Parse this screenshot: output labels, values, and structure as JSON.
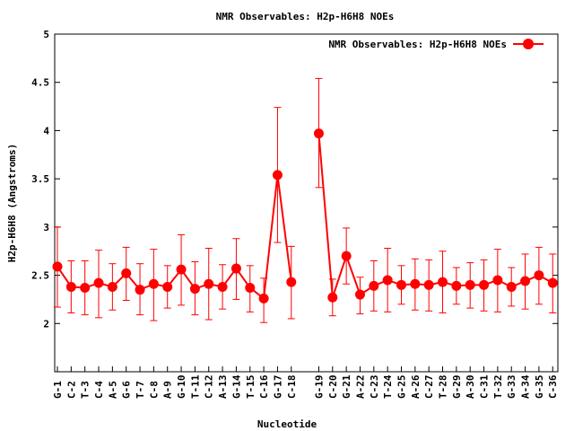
{
  "chart_data": {
    "type": "line",
    "title": "NMR Observables: H2p-H6H8 NOEs",
    "xlabel": "Nucleotide",
    "ylabel": "H2p-H6H8 (Angstroms)",
    "legend": {
      "label": "NMR Observables: H2p-H6H8 NOEs",
      "placement": "top-right"
    },
    "ylim": [
      1.5,
      5
    ],
    "yticks": [
      "2",
      "2.5",
      "3",
      "3.5",
      "4",
      "4.5",
      "5"
    ],
    "color": "#ff0000",
    "series": [
      {
        "name": "H2p-H6H8 NOEs",
        "segments": [
          [
            {
              "x": "G-1",
              "y": 2.59,
              "lo": 2.17,
              "hi": 3.0
            },
            {
              "x": "C-2",
              "y": 2.38,
              "lo": 2.11,
              "hi": 2.65
            },
            {
              "x": "T-3",
              "y": 2.37,
              "lo": 2.09,
              "hi": 2.65
            },
            {
              "x": "C-4",
              "y": 2.42,
              "lo": 2.06,
              "hi": 2.76
            },
            {
              "x": "A-5",
              "y": 2.38,
              "lo": 2.14,
              "hi": 2.62
            },
            {
              "x": "G-6",
              "y": 2.52,
              "lo": 2.24,
              "hi": 2.79
            },
            {
              "x": "T-7",
              "y": 2.35,
              "lo": 2.09,
              "hi": 2.62
            },
            {
              "x": "C-8",
              "y": 2.41,
              "lo": 2.03,
              "hi": 2.77
            },
            {
              "x": "A-9",
              "y": 2.38,
              "lo": 2.16,
              "hi": 2.6
            },
            {
              "x": "G-10",
              "y": 2.56,
              "lo": 2.19,
              "hi": 2.92
            },
            {
              "x": "T-11",
              "y": 2.36,
              "lo": 2.09,
              "hi": 2.64
            },
            {
              "x": "C-12",
              "y": 2.41,
              "lo": 2.04,
              "hi": 2.78
            },
            {
              "x": "A-13",
              "y": 2.38,
              "lo": 2.15,
              "hi": 2.61
            },
            {
              "x": "G-14",
              "y": 2.57,
              "lo": 2.25,
              "hi": 2.88
            },
            {
              "x": "T-15",
              "y": 2.37,
              "lo": 2.12,
              "hi": 2.6
            },
            {
              "x": "C-16",
              "y": 2.26,
              "lo": 2.01,
              "hi": 2.47
            },
            {
              "x": "G-17",
              "y": 3.54,
              "lo": 2.84,
              "hi": 4.24
            },
            {
              "x": "C-18",
              "y": 2.43,
              "lo": 2.05,
              "hi": 2.8
            }
          ],
          [
            {
              "x": "G-19",
              "y": 3.97,
              "lo": 3.41,
              "hi": 4.54
            },
            {
              "x": "C-20",
              "y": 2.27,
              "lo": 2.08,
              "hi": 2.46
            },
            {
              "x": "G-21",
              "y": 2.7,
              "lo": 2.41,
              "hi": 2.99
            },
            {
              "x": "A-22",
              "y": 2.3,
              "lo": 2.1,
              "hi": 2.48
            },
            {
              "x": "C-23",
              "y": 2.39,
              "lo": 2.13,
              "hi": 2.65
            },
            {
              "x": "T-24",
              "y": 2.45,
              "lo": 2.12,
              "hi": 2.78
            },
            {
              "x": "G-25",
              "y": 2.4,
              "lo": 2.2,
              "hi": 2.6
            },
            {
              "x": "A-26",
              "y": 2.41,
              "lo": 2.14,
              "hi": 2.67
            },
            {
              "x": "C-27",
              "y": 2.4,
              "lo": 2.13,
              "hi": 2.66
            },
            {
              "x": "T-28",
              "y": 2.43,
              "lo": 2.11,
              "hi": 2.75
            },
            {
              "x": "G-29",
              "y": 2.39,
              "lo": 2.2,
              "hi": 2.58
            },
            {
              "x": "A-30",
              "y": 2.4,
              "lo": 2.16,
              "hi": 2.63
            },
            {
              "x": "C-31",
              "y": 2.4,
              "lo": 2.13,
              "hi": 2.66
            },
            {
              "x": "T-32",
              "y": 2.45,
              "lo": 2.12,
              "hi": 2.77
            },
            {
              "x": "G-33",
              "y": 2.38,
              "lo": 2.18,
              "hi": 2.58
            },
            {
              "x": "A-34",
              "y": 2.44,
              "lo": 2.15,
              "hi": 2.72
            },
            {
              "x": "G-35",
              "y": 2.5,
              "lo": 2.2,
              "hi": 2.79
            },
            {
              "x": "C-36",
              "y": 2.42,
              "lo": 2.11,
              "hi": 2.72
            }
          ]
        ]
      }
    ]
  }
}
